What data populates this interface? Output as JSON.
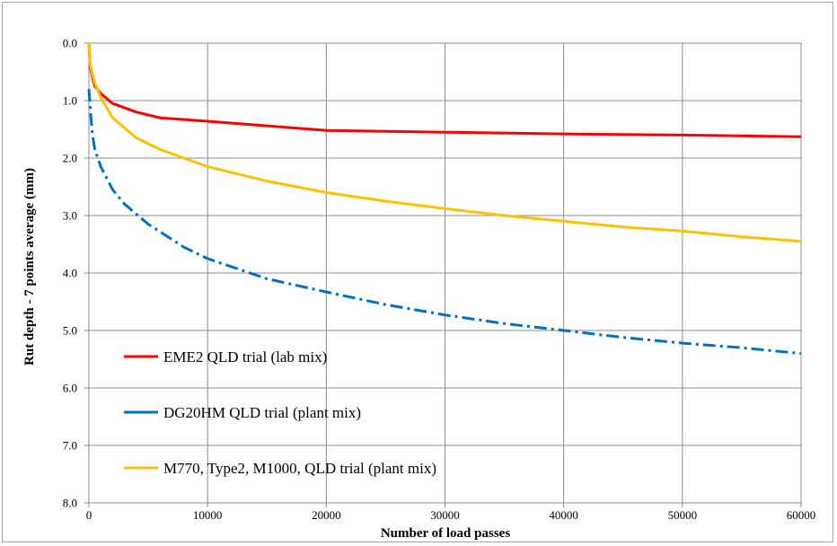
{
  "chart_data": {
    "type": "line",
    "title": "",
    "xlabel": "Number of load passes",
    "ylabel": "Rut depth - 7 points average (mm)",
    "xlim": [
      0,
      60000
    ],
    "ylim": [
      0,
      8
    ],
    "y_inverted": true,
    "grid": true,
    "legend_position": "bottom-left",
    "x_ticks": [
      "0",
      "10000",
      "20000",
      "30000",
      "40000",
      "50000",
      "60000"
    ],
    "y_ticks": [
      "0.0",
      "1.0",
      "2.0",
      "3.0",
      "4.0",
      "5.0",
      "6.0",
      "7.0",
      "8.0"
    ],
    "x_tick_values": [
      0,
      10000,
      20000,
      30000,
      40000,
      50000,
      60000
    ],
    "y_tick_values": [
      0,
      1,
      2,
      3,
      4,
      5,
      6,
      7,
      8
    ],
    "series": [
      {
        "name": "EME2 QLD trial (lab mix)",
        "color": "#ff0000",
        "style": "solid",
        "points": [
          [
            0,
            0
          ],
          [
            100,
            0.4
          ],
          [
            300,
            0.6
          ],
          [
            500,
            0.75
          ],
          [
            1000,
            0.88
          ],
          [
            2000,
            1.05
          ],
          [
            4000,
            1.2
          ],
          [
            6000,
            1.3
          ],
          [
            10000,
            1.36
          ],
          [
            15000,
            1.44
          ],
          [
            20000,
            1.52
          ],
          [
            30000,
            1.55
          ],
          [
            40000,
            1.58
          ],
          [
            50000,
            1.6
          ],
          [
            60000,
            1.63
          ]
        ]
      },
      {
        "name": "DG20HM QLD trial (plant mix)",
        "color": "#0070c0",
        "style": "dashdot",
        "points": [
          [
            0,
            0.8
          ],
          [
            100,
            1.1
          ],
          [
            200,
            1.35
          ],
          [
            300,
            1.6
          ],
          [
            500,
            1.85
          ],
          [
            1000,
            2.15
          ],
          [
            2000,
            2.55
          ],
          [
            3000,
            2.8
          ],
          [
            5000,
            3.15
          ],
          [
            8000,
            3.55
          ],
          [
            10000,
            3.75
          ],
          [
            15000,
            4.1
          ],
          [
            20000,
            4.33
          ],
          [
            25000,
            4.55
          ],
          [
            30000,
            4.73
          ],
          [
            35000,
            4.88
          ],
          [
            40000,
            5.0
          ],
          [
            45000,
            5.12
          ],
          [
            50000,
            5.22
          ],
          [
            55000,
            5.3
          ],
          [
            60000,
            5.4
          ]
        ]
      },
      {
        "name": "M770, Type2, M1000, QLD trial (plant mix)",
        "color": "#ffc000",
        "style": "solid",
        "points": [
          [
            0,
            0
          ],
          [
            100,
            0.35
          ],
          [
            300,
            0.55
          ],
          [
            500,
            0.7
          ],
          [
            1000,
            0.95
          ],
          [
            2000,
            1.3
          ],
          [
            4000,
            1.65
          ],
          [
            6000,
            1.85
          ],
          [
            10000,
            2.15
          ],
          [
            15000,
            2.4
          ],
          [
            20000,
            2.6
          ],
          [
            25000,
            2.75
          ],
          [
            30000,
            2.88
          ],
          [
            35000,
            3.0
          ],
          [
            40000,
            3.1
          ],
          [
            45000,
            3.2
          ],
          [
            50000,
            3.27
          ],
          [
            55000,
            3.37
          ],
          [
            60000,
            3.45
          ]
        ]
      }
    ]
  }
}
